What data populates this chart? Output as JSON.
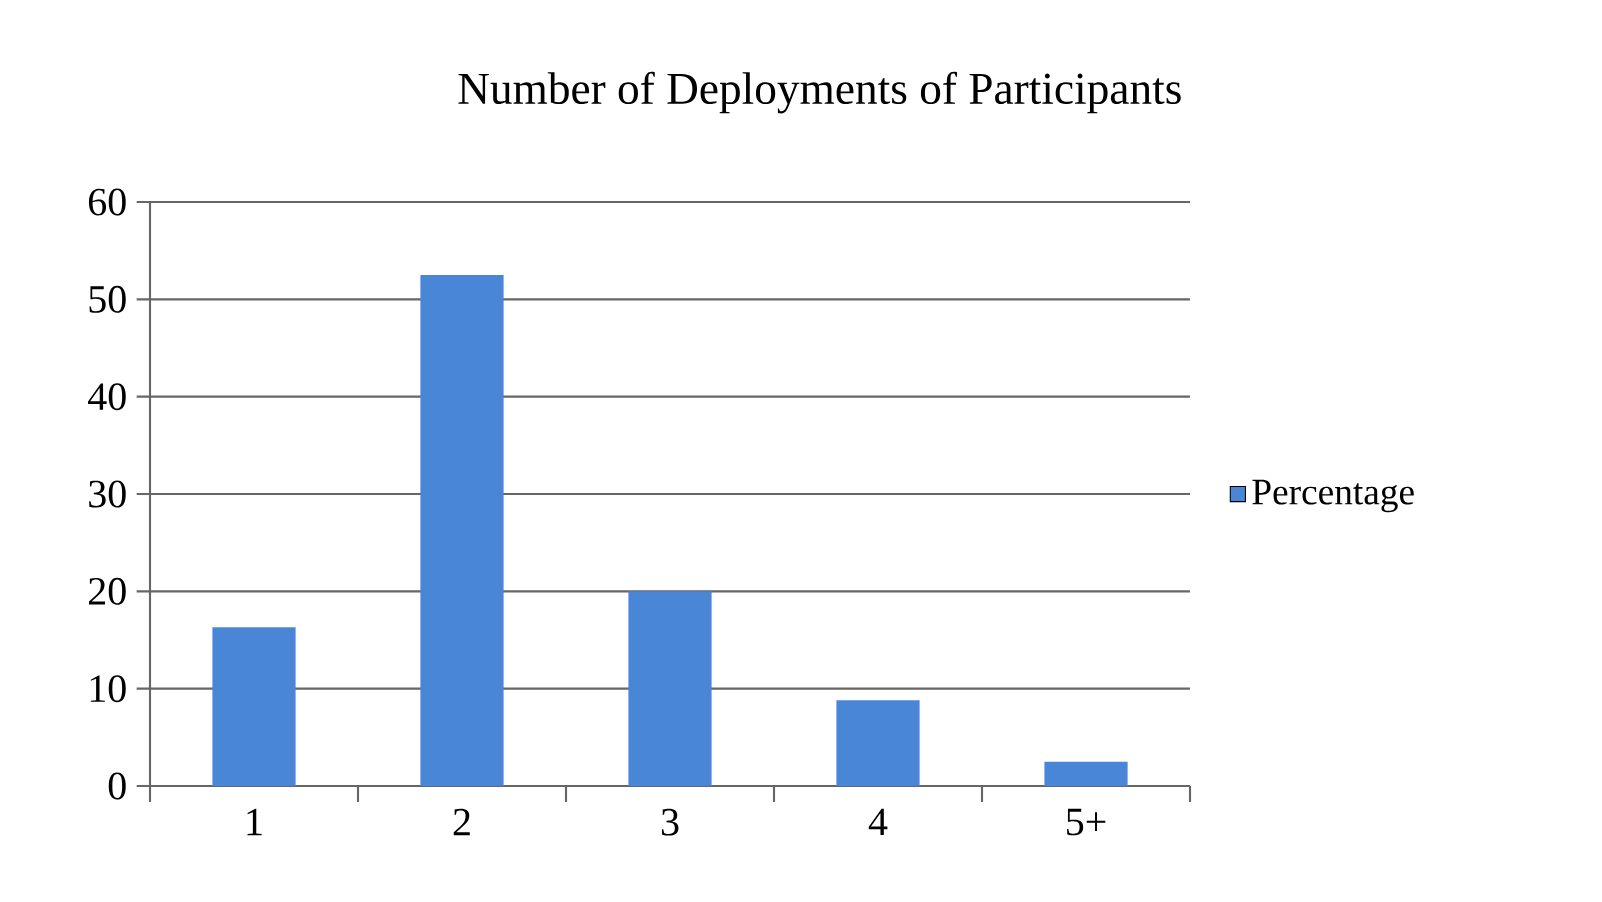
{
  "chart_data": {
    "type": "bar",
    "title": "Number of Deployments of Participants",
    "categories": [
      "1",
      "2",
      "3",
      "4",
      "5+"
    ],
    "series": [
      {
        "name": "Percentage",
        "color": "#4a86d8",
        "values": [
          16.3,
          52.5,
          20,
          8.8,
          2.5
        ]
      }
    ],
    "ylim": [
      0,
      60
    ],
    "yticks": [
      0,
      10,
      20,
      30,
      40,
      50,
      60
    ],
    "grid": "y",
    "legend": "right"
  }
}
